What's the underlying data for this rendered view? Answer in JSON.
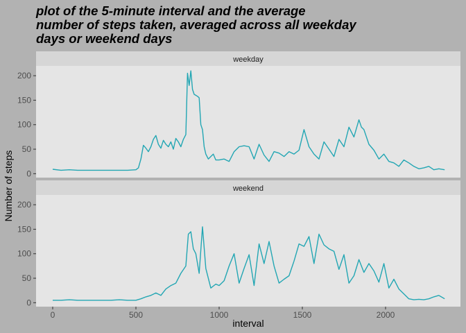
{
  "title_lines": [
    "plot of the 5-minute interval and the average",
    "number of steps taken, averaged across all weekday",
    "days or weekend days"
  ],
  "colors": {
    "background": "#b2b2b2",
    "panel": "#e5e5e5",
    "strip": "#d6d6d6",
    "line": "#22a6b3",
    "text": "#000000",
    "tick_text": "#4d4d4d"
  },
  "chart_data": {
    "type": "line",
    "title": "plot of the 5-minute interval and the average number of steps taken, averaged across all weekday days or weekend days",
    "xlabel": "interval",
    "ylabel": "Number of steps",
    "xlim": [
      -100,
      2450
    ],
    "ylim": [
      -8,
      220
    ],
    "x_ticks": [
      0,
      500,
      1000,
      1500,
      2000
    ],
    "y_ticks": [
      0,
      50,
      100,
      150,
      200
    ],
    "grid": false,
    "legend": "none",
    "series": [
      {
        "name": "weekday",
        "x": [
          0,
          50,
          100,
          150,
          200,
          250,
          300,
          350,
          400,
          450,
          500,
          515,
          530,
          545,
          560,
          575,
          590,
          605,
          620,
          635,
          650,
          665,
          680,
          695,
          710,
          725,
          740,
          755,
          770,
          785,
          800,
          810,
          820,
          830,
          840,
          850,
          860,
          870,
          880,
          890,
          900,
          910,
          920,
          935,
          950,
          965,
          980,
          1000,
          1030,
          1060,
          1090,
          1120,
          1150,
          1180,
          1210,
          1240,
          1270,
          1300,
          1330,
          1360,
          1390,
          1420,
          1450,
          1480,
          1510,
          1540,
          1570,
          1600,
          1630,
          1660,
          1690,
          1720,
          1750,
          1780,
          1810,
          1840,
          1855,
          1870,
          1900,
          1930,
          1960,
          1990,
          2020,
          2050,
          2080,
          2110,
          2140,
          2170,
          2200,
          2230,
          2260,
          2290,
          2320,
          2355
        ],
        "values": [
          9,
          7,
          8,
          7,
          7,
          7,
          7,
          7,
          7,
          7,
          8,
          12,
          30,
          58,
          52,
          45,
          55,
          70,
          78,
          60,
          52,
          68,
          60,
          55,
          65,
          50,
          72,
          65,
          55,
          70,
          80,
          205,
          180,
          210,
          172,
          162,
          160,
          158,
          155,
          100,
          90,
          55,
          40,
          30,
          35,
          40,
          28,
          28,
          30,
          25,
          45,
          55,
          57,
          55,
          30,
          60,
          38,
          25,
          45,
          42,
          35,
          45,
          40,
          48,
          90,
          55,
          40,
          30,
          65,
          50,
          35,
          70,
          55,
          95,
          75,
          110,
          95,
          90,
          60,
          48,
          30,
          40,
          25,
          22,
          15,
          28,
          22,
          15,
          10,
          12,
          15,
          8,
          10,
          8
        ]
      },
      {
        "name": "weekend",
        "x": [
          0,
          50,
          100,
          150,
          200,
          250,
          300,
          350,
          400,
          450,
          500,
          530,
          560,
          590,
          620,
          650,
          680,
          710,
          740,
          770,
          800,
          815,
          830,
          845,
          860,
          880,
          900,
          920,
          950,
          980,
          1000,
          1030,
          1060,
          1090,
          1120,
          1150,
          1180,
          1210,
          1240,
          1270,
          1300,
          1330,
          1360,
          1390,
          1420,
          1450,
          1480,
          1510,
          1540,
          1570,
          1600,
          1630,
          1660,
          1690,
          1720,
          1750,
          1780,
          1810,
          1840,
          1870,
          1900,
          1930,
          1960,
          1990,
          2020,
          2050,
          2080,
          2110,
          2140,
          2170,
          2200,
          2230,
          2260,
          2290,
          2320,
          2355
        ],
        "values": [
          5,
          5,
          6,
          5,
          5,
          5,
          5,
          5,
          6,
          5,
          5,
          8,
          12,
          15,
          20,
          15,
          28,
          35,
          40,
          60,
          75,
          140,
          145,
          110,
          100,
          60,
          155,
          70,
          30,
          38,
          35,
          45,
          75,
          100,
          40,
          70,
          98,
          35,
          120,
          80,
          125,
          75,
          40,
          48,
          55,
          85,
          120,
          115,
          135,
          80,
          140,
          118,
          110,
          105,
          68,
          98,
          40,
          55,
          88,
          62,
          80,
          65,
          42,
          80,
          30,
          48,
          28,
          18,
          8,
          6,
          7,
          6,
          8,
          12,
          15,
          8
        ]
      }
    ]
  }
}
